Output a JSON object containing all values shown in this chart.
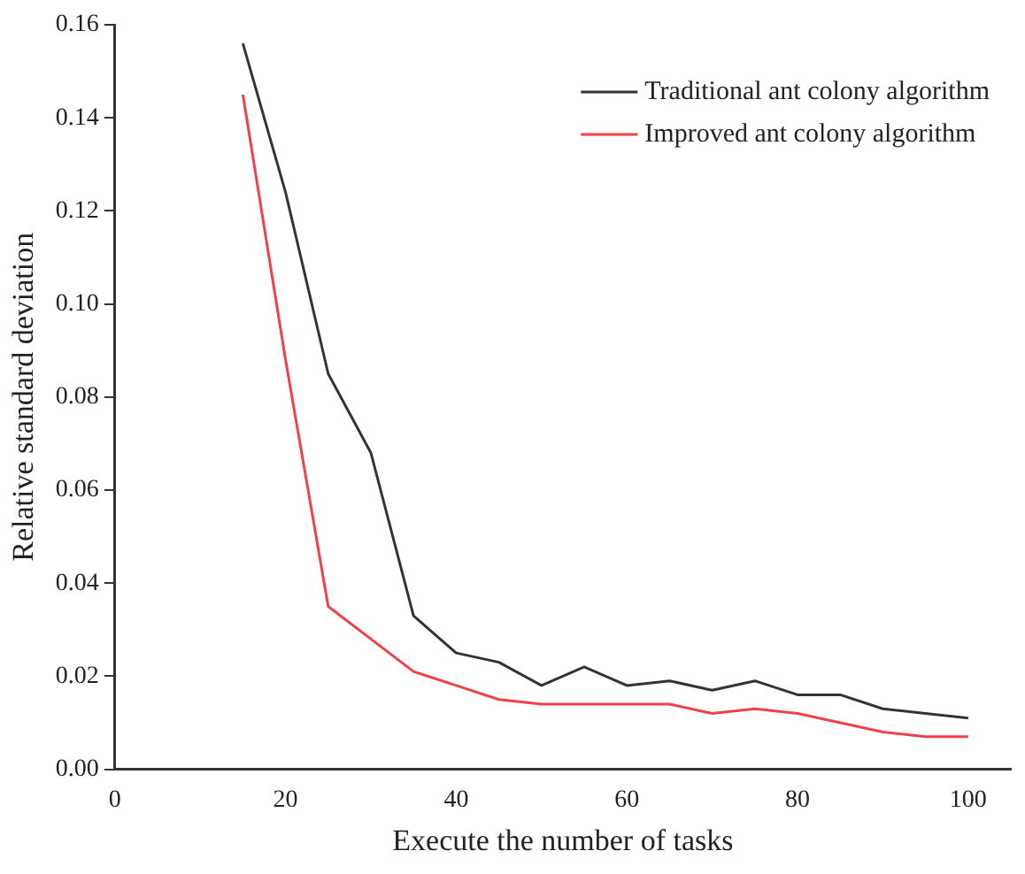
{
  "chart_data": {
    "type": "line",
    "xlabel": "Execute the number of tasks",
    "ylabel": "Relative standard deviation",
    "xlim": [
      0,
      105
    ],
    "xticks": [
      0,
      20,
      40,
      60,
      80,
      100
    ],
    "ylim": [
      0,
      0.16
    ],
    "yticks": [
      {
        "value": 0,
        "label": "0.00"
      },
      {
        "value": 0.02,
        "label": "0.02"
      },
      {
        "value": 0.04,
        "label": "0.04"
      },
      {
        "value": 0.06,
        "label": "0.06"
      },
      {
        "value": 0.08,
        "label": "0.08"
      },
      {
        "value": 0.1,
        "label": "0.10"
      },
      {
        "value": 0.12,
        "label": "0.12"
      },
      {
        "value": 0.14,
        "label": "0.14"
      },
      {
        "value": 0.16,
        "label": "0.16"
      }
    ],
    "x": [
      15,
      20,
      25,
      30,
      35,
      40,
      45,
      50,
      55,
      60,
      65,
      70,
      75,
      80,
      85,
      90,
      95,
      100
    ],
    "series": [
      {
        "name": "Traditional ant colony algorithm",
        "color": "#333333",
        "values": [
          0.156,
          0.124,
          0.085,
          0.068,
          0.033,
          0.025,
          0.023,
          0.018,
          0.022,
          0.018,
          0.019,
          0.017,
          0.019,
          0.016,
          0.016,
          0.013,
          0.012,
          0.011
        ]
      },
      {
        "name": "Improved ant colony algorithm",
        "color": "#f0404a",
        "values": [
          0.145,
          0.088,
          0.035,
          0.028,
          0.021,
          0.018,
          0.015,
          0.014,
          0.014,
          0.014,
          0.014,
          0.012,
          0.013,
          0.012,
          0.01,
          0.008,
          0.007,
          0.007
        ]
      }
    ],
    "legend": "top right",
    "grid": false,
    "marker": "none",
    "line_style": "solid"
  }
}
